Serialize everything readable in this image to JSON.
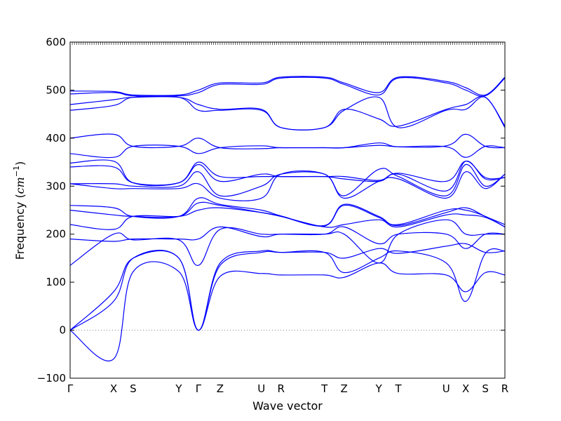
{
  "chart_data": {
    "type": "line",
    "xlabel": "Wave vector",
    "ylabel": "Frequency (",
    "ylabel_math": "cm",
    "ylabel_sup": "−1",
    "ylabel_close": ")",
    "ylim": [
      -100,
      600
    ],
    "yticks": [
      "−100",
      "0",
      "100",
      "200",
      "300",
      "400",
      "500",
      "600"
    ],
    "ytick_values": [
      -100,
      0,
      100,
      200,
      300,
      400,
      500,
      600
    ],
    "xlim": [
      0,
      20
    ],
    "xticks": [
      {
        "label": "Γ",
        "x": 0
      },
      {
        "label": "X",
        "x": 2
      },
      {
        "label": "S",
        "x": 2.9
      },
      {
        "label": "Y",
        "x": 5
      },
      {
        "label": "Γ",
        "x": 5.9
      },
      {
        "label": "Z",
        "x": 6.9
      },
      {
        "label": "U",
        "x": 8.8
      },
      {
        "label": "R",
        "x": 9.7
      },
      {
        "label": "T",
        "x": 11.7
      },
      {
        "label": "Z",
        "x": 12.6
      },
      {
        "label": "Y",
        "x": 14.2
      },
      {
        "label": "T",
        "x": 15.1
      },
      {
        "label": "U",
        "x": 17.3
      },
      {
        "label": "X",
        "x": 18.2
      },
      {
        "label": "S",
        "x": 19.1
      },
      {
        "label": "R",
        "x": 20
      }
    ],
    "zero_line": true,
    "line_color": "#0000ff",
    "zero_line_color": "#808080",
    "band_knots_x": [
      0,
      2,
      2.9,
      5,
      5.9,
      6.9,
      8.8,
      9.7,
      11.7,
      12.6,
      14.2,
      15.1,
      17.3,
      18.2,
      19.1,
      20
    ],
    "bands": [
      [
        0,
        -60,
        122,
        122,
        0,
        112,
        118,
        115,
        115,
        110,
        140,
        118,
        115,
        80,
        120,
        115
      ],
      [
        0,
        60,
        150,
        150,
        0,
        135,
        162,
        162,
        162,
        120,
        150,
        165,
        140,
        60,
        160,
        165
      ],
      [
        0,
        80,
        150,
        150,
        0,
        140,
        165,
        162,
        162,
        150,
        170,
        160,
        175,
        180,
        162,
        165
      ],
      [
        135,
        200,
        188,
        188,
        135,
        210,
        200,
        200,
        200,
        215,
        180,
        200,
        200,
        170,
        200,
        200
      ],
      [
        190,
        185,
        190,
        190,
        190,
        215,
        195,
        200,
        200,
        200,
        140,
        200,
        230,
        200,
        200,
        200
      ],
      [
        220,
        210,
        237,
        237,
        250,
        255,
        245,
        237,
        215,
        220,
        230,
        215,
        240,
        240,
        235,
        215
      ],
      [
        250,
        240,
        237,
        237,
        265,
        260,
        245,
        237,
        217,
        260,
        235,
        220,
        250,
        250,
        237,
        215
      ],
      [
        260,
        255,
        237,
        237,
        275,
        262,
        250,
        238,
        218,
        262,
        237,
        218,
        245,
        255,
        237,
        220
      ],
      [
        305,
        295,
        295,
        295,
        305,
        275,
        275,
        325,
        325,
        275,
        310,
        315,
        275,
        330,
        295,
        325
      ],
      [
        305,
        305,
        300,
        300,
        330,
        280,
        300,
        325,
        325,
        280,
        335,
        320,
        280,
        345,
        300,
        325
      ],
      [
        340,
        340,
        307,
        307,
        345,
        310,
        325,
        320,
        320,
        315,
        310,
        325,
        290,
        352,
        315,
        318
      ],
      [
        348,
        352,
        307,
        307,
        350,
        320,
        320,
        320,
        320,
        320,
        312,
        327,
        310,
        352,
        318,
        318
      ],
      [
        368,
        360,
        383,
        383,
        368,
        380,
        384,
        380,
        380,
        380,
        385,
        382,
        382,
        360,
        383,
        380
      ],
      [
        400,
        408,
        383,
        383,
        400,
        380,
        378,
        380,
        380,
        380,
        390,
        382,
        384,
        408,
        383,
        380
      ],
      [
        458,
        468,
        485,
        485,
        458,
        458,
        458,
        422,
        422,
        458,
        485,
        422,
        458,
        460,
        485,
        422
      ],
      [
        470,
        480,
        485,
        485,
        470,
        460,
        460,
        422,
        422,
        460,
        440,
        425,
        460,
        470,
        485,
        425
      ],
      [
        492,
        495,
        488,
        488,
        495,
        512,
        512,
        525,
        525,
        512,
        490,
        525,
        515,
        500,
        488,
        525
      ],
      [
        498,
        497,
        490,
        490,
        500,
        515,
        515,
        527,
        527,
        515,
        495,
        527,
        518,
        505,
        490,
        527
      ]
    ]
  }
}
